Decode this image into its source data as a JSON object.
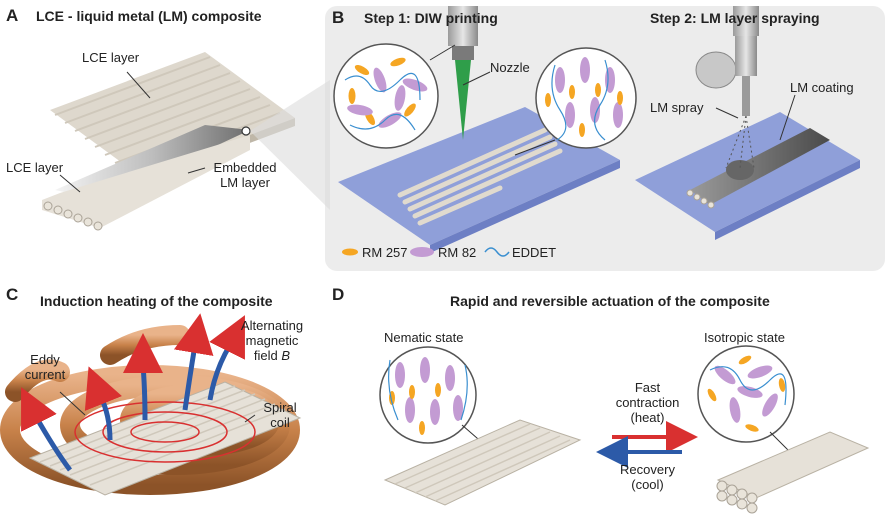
{
  "panelA": {
    "letter": "A",
    "title": "LCE - liquid metal (LM) composite",
    "lce_top": "LCE layer",
    "lce_bottom": "LCE layer",
    "embedded_1": "Embedded",
    "embedded_2": "LM layer"
  },
  "panelB": {
    "letter": "B",
    "step1": "Step 1: DIW printing",
    "step2": "Step 2: LM layer spraying",
    "nozzle": "Nozzle",
    "lm_coating": "LM coating",
    "lm_spray": "LM spray",
    "legend": [
      "RM 257",
      "RM 82",
      "EDDET"
    ]
  },
  "panelC": {
    "letter": "C",
    "title": "Induction heating of the composite",
    "eddy_1": "Eddy",
    "eddy_2": "current",
    "alt_1": "Alternating",
    "alt_2": "magnetic",
    "alt_3": "field ",
    "alt_b": "B",
    "spiral_1": "Spiral",
    "spiral_2": "coil"
  },
  "panelD": {
    "letter": "D",
    "title": "Rapid and reversible actuation of the composite",
    "nematic": "Nematic state",
    "isotropic": "Isotropic state",
    "fast_1": "Fast",
    "fast_2": "contraction",
    "fast_3": "(heat)",
    "rec_1": "Recovery",
    "rec_2": "(cool)"
  },
  "colors": {
    "orange_mesogen": "#f5a623",
    "purple_mesogen": "#c39bd3",
    "linker": "#3a8fd0",
    "substrate": "#8f9fd9",
    "copper": "#c8824a",
    "red_arrow": "#d93030",
    "blue_arrow": "#2c5aa8",
    "green_nozzle": "#2f9e4a",
    "fiber": "#e6e1d8"
  }
}
